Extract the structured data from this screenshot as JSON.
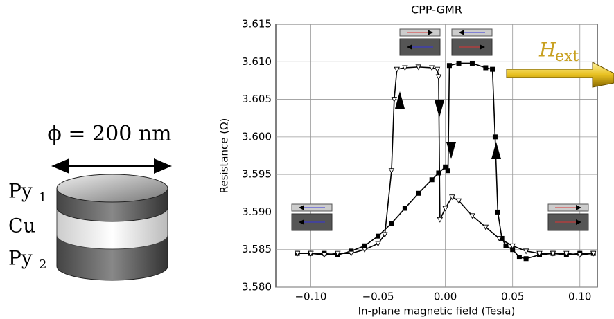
{
  "chart_data": {
    "type": "line",
    "title": "CPP-GMR",
    "x_label": "In-plane magnetic field (Tesla)",
    "y_label": "Resistance (Ω)",
    "xlim": [
      -0.126,
      0.113
    ],
    "ylim": [
      3.58,
      3.615
    ],
    "xticks": [
      {
        "value": -0.1,
        "label": "−0.10"
      },
      {
        "value": -0.05,
        "label": "−0.05"
      },
      {
        "value": 0,
        "label": "0.00"
      },
      0.05,
      {
        "value": 0.1,
        "label": "0.10"
      }
    ],
    "yticks": [
      {
        "value": 3.58,
        "label": "3.580"
      },
      3.585,
      {
        "value": 3.59,
        "label": "3.590"
      },
      3.595,
      {
        "value": 3.6,
        "label": "3.600"
      },
      3.605,
      {
        "value": 3.61,
        "label": "3.610"
      },
      3.615
    ],
    "grid": true,
    "series": [
      {
        "marker": "filled-square",
        "color": "#000000",
        "x": [
          -0.11,
          -0.1,
          -0.09,
          -0.08,
          -0.07,
          -0.06,
          -0.05,
          -0.04,
          -0.03,
          -0.02,
          -0.01,
          -0.005,
          0,
          0.002,
          0.003,
          0.01,
          0.02,
          0.03,
          0.035,
          0.037,
          0.039,
          0.042,
          0.045,
          0.05,
          0.055,
          0.06,
          0.07,
          0.08,
          0.09,
          0.1,
          0.11
        ],
        "values": [
          3.5845,
          3.5845,
          3.5845,
          3.5843,
          3.5848,
          3.5855,
          3.5868,
          3.5885,
          3.5905,
          3.5925,
          3.5943,
          3.5952,
          3.596,
          3.5955,
          3.6095,
          3.6098,
          3.6098,
          3.6092,
          3.609,
          3.6,
          3.59,
          3.5865,
          3.5855,
          3.585,
          3.584,
          3.5838,
          3.5843,
          3.5845,
          3.5843,
          3.5845,
          3.5845
        ]
      },
      {
        "marker": "open-triangle",
        "color": "#000000",
        "x": [
          -0.11,
          -0.1,
          -0.09,
          -0.08,
          -0.07,
          -0.06,
          -0.05,
          -0.045,
          -0.04,
          -0.038,
          -0.036,
          -0.03,
          -0.02,
          -0.01,
          -0.006,
          -0.005,
          -0.004,
          0,
          0.005,
          0.01,
          0.02,
          0.03,
          0.04,
          0.05,
          0.06,
          0.07,
          0.08,
          0.09,
          0.1,
          0.11
        ],
        "values": [
          3.5845,
          3.5845,
          3.5843,
          3.5845,
          3.5845,
          3.585,
          3.5858,
          3.587,
          3.5955,
          3.605,
          3.609,
          3.6092,
          3.6093,
          3.6092,
          3.609,
          3.608,
          3.589,
          3.5905,
          3.592,
          3.5915,
          3.5895,
          3.588,
          3.5865,
          3.5855,
          3.5848,
          3.5845,
          3.5845,
          3.5845,
          3.5843,
          3.5845
        ]
      }
    ],
    "field_label": {
      "text": "H",
      "subscript": "ext"
    },
    "schematic": {
      "diameter_label": "ϕ = 200 nm",
      "layers": [
        {
          "text": "Py",
          "subscript": "1"
        },
        {
          "text": "Cu"
        },
        {
          "text": "Py",
          "subscript": "2"
        }
      ]
    }
  }
}
